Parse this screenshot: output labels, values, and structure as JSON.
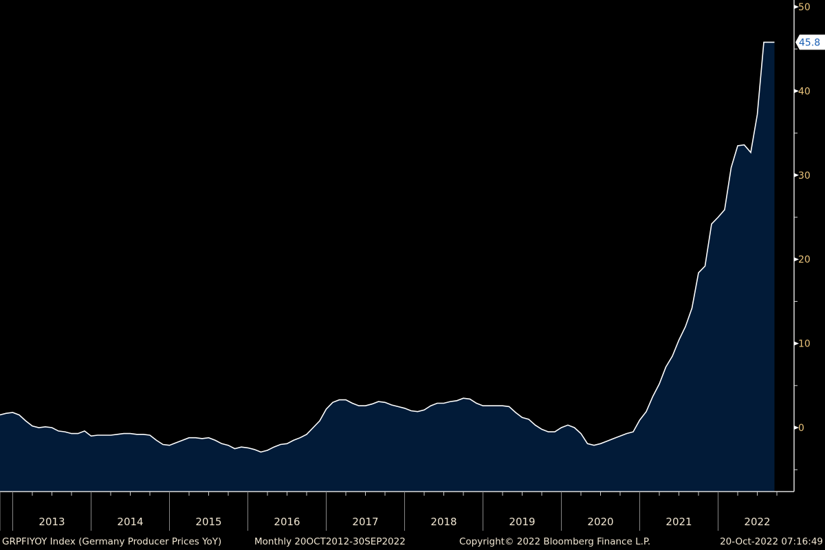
{
  "chart_data": {
    "type": "area",
    "title": "GRPFIYOY Index (Germany Producer Prices YoY)",
    "frequency": "Monthly",
    "date_range": "20OCT2012-30SEP2022",
    "start_month": "2012-10",
    "end_month": "2022-09",
    "values": [
      1.4,
      1.5,
      1.7,
      1.8,
      1.5,
      0.8,
      0.2,
      0.0,
      0.1,
      0.0,
      -0.4,
      -0.5,
      -0.7,
      -0.7,
      -0.4,
      -1.0,
      -0.9,
      -0.9,
      -0.9,
      -0.8,
      -0.7,
      -0.7,
      -0.8,
      -0.8,
      -0.9,
      -1.5,
      -2.0,
      -2.1,
      -1.8,
      -1.5,
      -1.2,
      -1.2,
      -1.3,
      -1.2,
      -1.5,
      -1.9,
      -2.1,
      -2.5,
      -2.3,
      -2.4,
      -2.6,
      -2.9,
      -2.7,
      -2.3,
      -2.0,
      -1.9,
      -1.5,
      -1.2,
      -0.8,
      0.0,
      0.8,
      2.2,
      3.0,
      3.3,
      3.3,
      2.9,
      2.6,
      2.6,
      2.8,
      3.1,
      3.0,
      2.7,
      2.5,
      2.3,
      2.0,
      1.9,
      2.1,
      2.6,
      2.9,
      2.9,
      3.1,
      3.2,
      3.5,
      3.4,
      2.9,
      2.6,
      2.6,
      2.6,
      2.6,
      2.5,
      1.8,
      1.2,
      1.0,
      0.3,
      -0.2,
      -0.5,
      -0.5,
      0.0,
      0.3,
      0.0,
      -0.7,
      -1.9,
      -2.1,
      -1.9,
      -1.6,
      -1.3,
      -1.0,
      -0.7,
      -0.5,
      0.9,
      1.9,
      3.7,
      5.2,
      7.2,
      8.5,
      10.4,
      12.0,
      14.2,
      18.4,
      19.2,
      24.2,
      25.0,
      25.9,
      30.9,
      33.5,
      33.6,
      32.7,
      37.2,
      45.8,
      45.8
    ],
    "ylim": [
      -7.6,
      50.8
    ],
    "y_ticks": [
      "50",
      "40",
      "30",
      "20",
      "10",
      "0"
    ],
    "y_tick_values": [
      50,
      40,
      30,
      20,
      10,
      0
    ],
    "x_ticks": [
      "2013",
      "2014",
      "2015",
      "2016",
      "2017",
      "2018",
      "2019",
      "2020",
      "2021",
      "2022"
    ],
    "last_value_label": "45.8",
    "colors": {
      "fill": "#021b38",
      "line": "#ffffff",
      "background": "#000000"
    }
  },
  "footer": {
    "ticker": "GRPFIYOY Index (Germany Producer Prices YoY)",
    "period": "Monthly 20OCT2012-30SEP2022",
    "copyright": "Copyright© 2022 Bloomberg Finance L.P.",
    "timestamp": "20-Oct-2022 07:16:49"
  }
}
